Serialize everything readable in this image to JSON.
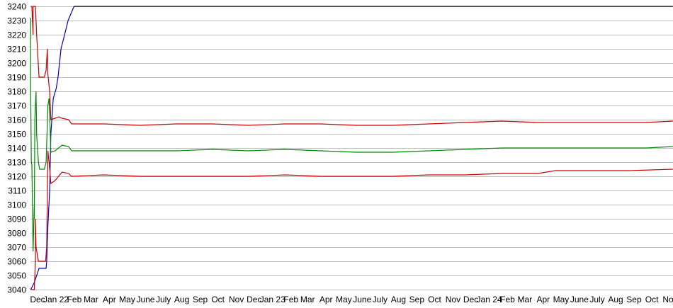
{
  "chart_data": {
    "type": "line",
    "title": "",
    "xlabel": "",
    "ylabel": "",
    "ylim": [
      3040,
      3240
    ],
    "xlim": [
      "2021-11-29",
      "2024-11-15"
    ],
    "grid": true,
    "grid_color": "#c0c0c0",
    "yticks": [
      3040,
      3050,
      3060,
      3070,
      3080,
      3090,
      3100,
      3110,
      3120,
      3130,
      3140,
      3150,
      3160,
      3170,
      3180,
      3190,
      3200,
      3210,
      3220,
      3230,
      3240
    ],
    "xticks": [
      {
        "date": "2021-12-01",
        "label": "Dec"
      },
      {
        "date": "2022-01-01",
        "label": "Jan 22"
      },
      {
        "date": "2022-02-01",
        "label": "Feb"
      },
      {
        "date": "2022-03-01",
        "label": "Mar"
      },
      {
        "date": "2022-04-01",
        "label": "Apr"
      },
      {
        "date": "2022-05-01",
        "label": "May"
      },
      {
        "date": "2022-06-01",
        "label": "June"
      },
      {
        "date": "2022-07-01",
        "label": "July"
      },
      {
        "date": "2022-08-01",
        "label": "Aug"
      },
      {
        "date": "2022-09-01",
        "label": "Sep"
      },
      {
        "date": "2022-10-01",
        "label": "Oct"
      },
      {
        "date": "2022-11-01",
        "label": "Nov"
      },
      {
        "date": "2022-12-01",
        "label": "Dec"
      },
      {
        "date": "2023-01-01",
        "label": "Jan 23"
      },
      {
        "date": "2023-02-01",
        "label": "Feb"
      },
      {
        "date": "2023-03-01",
        "label": "Mar"
      },
      {
        "date": "2023-04-01",
        "label": "Apr"
      },
      {
        "date": "2023-05-01",
        "label": "May"
      },
      {
        "date": "2023-06-01",
        "label": "June"
      },
      {
        "date": "2023-07-01",
        "label": "July"
      },
      {
        "date": "2023-08-01",
        "label": "Aug"
      },
      {
        "date": "2023-09-01",
        "label": "Sep"
      },
      {
        "date": "2023-10-01",
        "label": "Oct"
      },
      {
        "date": "2023-11-01",
        "label": "Nov"
      },
      {
        "date": "2023-12-01",
        "label": "Dec"
      },
      {
        "date": "2024-01-01",
        "label": "Jan 24"
      },
      {
        "date": "2024-02-01",
        "label": "Feb"
      },
      {
        "date": "2024-03-01",
        "label": "Mar"
      },
      {
        "date": "2024-04-01",
        "label": "Apr"
      },
      {
        "date": "2024-05-01",
        "label": "May"
      },
      {
        "date": "2024-06-01",
        "label": "June"
      },
      {
        "date": "2024-07-01",
        "label": "July"
      },
      {
        "date": "2024-08-01",
        "label": "Aug"
      },
      {
        "date": "2024-09-01",
        "label": "Sep"
      },
      {
        "date": "2024-10-01",
        "label": "Oct"
      },
      {
        "date": "2024-11-01",
        "label": "Nov"
      }
    ],
    "series": [
      {
        "color": "#000000",
        "points": [
          [
            "2022-02-10",
            3240
          ],
          [
            "2024-11-15",
            3240
          ]
        ]
      },
      {
        "color": "#0000cc",
        "points": [
          [
            "2021-11-29",
            3040
          ],
          [
            "2021-12-05",
            3045
          ],
          [
            "2021-12-13",
            3055
          ],
          [
            "2021-12-25",
            3055
          ],
          [
            "2021-12-26",
            3060
          ],
          [
            "2021-12-28",
            3085
          ],
          [
            "2021-12-31",
            3110
          ],
          [
            "2022-01-02",
            3150
          ],
          [
            "2022-01-06",
            3175
          ],
          [
            "2022-01-11",
            3182
          ],
          [
            "2022-01-14",
            3190
          ],
          [
            "2022-01-19",
            3210
          ],
          [
            "2022-01-24",
            3218
          ],
          [
            "2022-01-31",
            3230
          ],
          [
            "2022-02-10",
            3240
          ]
        ]
      },
      {
        "color": "#cc0000",
        "points": [
          [
            "2021-11-29",
            3240
          ],
          [
            "2021-12-01",
            3240
          ],
          [
            "2021-12-02",
            3230
          ],
          [
            "2021-12-03",
            3220
          ],
          [
            "2021-12-03",
            3240
          ],
          [
            "2021-12-07",
            3240
          ],
          [
            "2021-12-09",
            3220
          ],
          [
            "2021-12-13",
            3190
          ],
          [
            "2021-12-22",
            3190
          ],
          [
            "2021-12-25",
            3195
          ],
          [
            "2021-12-27",
            3210
          ],
          [
            "2021-12-28",
            3192
          ],
          [
            "2021-12-31",
            3180
          ],
          [
            "2022-01-02",
            3160
          ],
          [
            "2022-01-09",
            3161
          ],
          [
            "2022-01-15",
            3162
          ],
          [
            "2022-01-21",
            3161
          ],
          [
            "2022-02-01",
            3160
          ],
          [
            "2022-02-06",
            3157
          ],
          [
            "2022-04-01",
            3157
          ],
          [
            "2022-06-01",
            3156
          ],
          [
            "2022-08-01",
            3157
          ],
          [
            "2022-10-01",
            3157
          ],
          [
            "2022-12-01",
            3156
          ],
          [
            "2023-02-01",
            3157
          ],
          [
            "2023-04-01",
            3157
          ],
          [
            "2023-06-01",
            3156
          ],
          [
            "2023-08-01",
            3156
          ],
          [
            "2023-10-01",
            3157
          ],
          [
            "2023-12-01",
            3158
          ],
          [
            "2024-02-01",
            3159
          ],
          [
            "2024-04-01",
            3158
          ],
          [
            "2024-06-01",
            3158
          ],
          [
            "2024-08-01",
            3158
          ],
          [
            "2024-10-01",
            3158
          ],
          [
            "2024-11-15",
            3159
          ]
        ]
      },
      {
        "color": "#008800",
        "points": [
          [
            "2021-11-29",
            3232
          ],
          [
            "2021-11-29",
            3180
          ],
          [
            "2021-11-30",
            3130
          ],
          [
            "2021-12-01",
            3128
          ],
          [
            "2021-12-02",
            3100
          ],
          [
            "2021-12-03",
            3067
          ],
          [
            "2021-12-05",
            3100
          ],
          [
            "2021-12-05",
            3090
          ],
          [
            "2021-12-06",
            3160
          ],
          [
            "2021-12-07",
            3170
          ],
          [
            "2021-12-08",
            3180
          ],
          [
            "2021-12-09",
            3150
          ],
          [
            "2021-12-12",
            3130
          ],
          [
            "2021-12-14",
            3125
          ],
          [
            "2021-12-22",
            3125
          ],
          [
            "2021-12-25",
            3130
          ],
          [
            "2021-12-28",
            3170
          ],
          [
            "2021-12-30",
            3175
          ],
          [
            "2022-01-01",
            3150
          ],
          [
            "2022-01-02",
            3137
          ],
          [
            "2022-01-09",
            3138
          ],
          [
            "2022-01-15",
            3140
          ],
          [
            "2022-01-21",
            3142
          ],
          [
            "2022-02-01",
            3141
          ],
          [
            "2022-02-06",
            3138
          ],
          [
            "2022-04-01",
            3138
          ],
          [
            "2022-06-01",
            3138
          ],
          [
            "2022-08-01",
            3138
          ],
          [
            "2022-10-01",
            3139
          ],
          [
            "2022-12-01",
            3138
          ],
          [
            "2023-02-01",
            3139
          ],
          [
            "2023-04-01",
            3138
          ],
          [
            "2023-06-01",
            3137
          ],
          [
            "2023-08-01",
            3137
          ],
          [
            "2023-10-01",
            3138
          ],
          [
            "2023-12-01",
            3139
          ],
          [
            "2024-02-01",
            3140
          ],
          [
            "2024-04-01",
            3140
          ],
          [
            "2024-06-01",
            3140
          ],
          [
            "2024-08-01",
            3140
          ],
          [
            "2024-10-01",
            3140
          ],
          [
            "2024-11-15",
            3141
          ]
        ]
      },
      {
        "color": "#cc0000",
        "points": [
          [
            "2021-11-29",
            3040
          ],
          [
            "2021-12-05",
            3040
          ],
          [
            "2021-12-07",
            3060
          ],
          [
            "2021-12-07",
            3090
          ],
          [
            "2021-12-08",
            3070
          ],
          [
            "2021-12-12",
            3060
          ],
          [
            "2021-12-24",
            3060
          ],
          [
            "2021-12-26",
            3070
          ],
          [
            "2021-12-28",
            3138
          ],
          [
            "2021-12-30",
            3130
          ],
          [
            "2022-01-02",
            3115
          ],
          [
            "2022-01-09",
            3117
          ],
          [
            "2022-01-15",
            3120
          ],
          [
            "2022-01-21",
            3123
          ],
          [
            "2022-02-01",
            3122
          ],
          [
            "2022-02-06",
            3120
          ],
          [
            "2022-04-01",
            3121
          ],
          [
            "2022-06-01",
            3120
          ],
          [
            "2022-08-01",
            3120
          ],
          [
            "2022-10-01",
            3120
          ],
          [
            "2022-12-01",
            3120
          ],
          [
            "2023-02-01",
            3121
          ],
          [
            "2023-04-01",
            3120
          ],
          [
            "2023-06-01",
            3120
          ],
          [
            "2023-08-01",
            3120
          ],
          [
            "2023-10-01",
            3121
          ],
          [
            "2023-12-01",
            3121
          ],
          [
            "2024-02-01",
            3122
          ],
          [
            "2024-04-01",
            3122
          ],
          [
            "2024-05-01",
            3124
          ],
          [
            "2024-07-01",
            3124
          ],
          [
            "2024-09-01",
            3124
          ],
          [
            "2024-11-15",
            3125
          ]
        ]
      }
    ]
  }
}
